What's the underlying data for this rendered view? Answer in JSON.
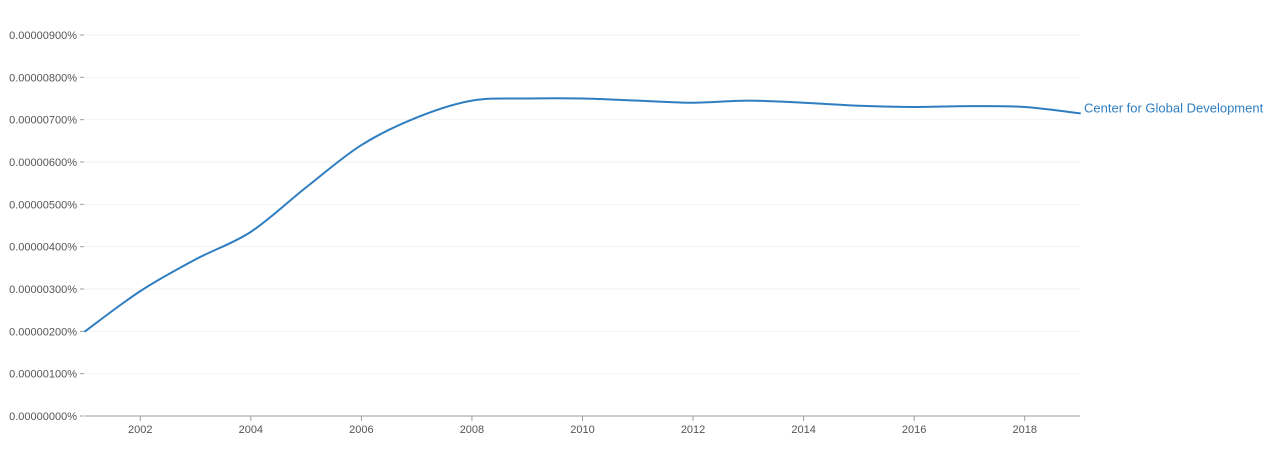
{
  "chart_data": {
    "type": "line",
    "title": "",
    "xlabel": "",
    "ylabel": "",
    "x": [
      2001,
      2002,
      2003,
      2004,
      2005,
      2006,
      2007,
      2008,
      2009,
      2010,
      2011,
      2012,
      2013,
      2014,
      2015,
      2016,
      2017,
      2018,
      2019
    ],
    "series": [
      {
        "name": "Center for Global Development",
        "values": [
          2e-08,
          2.95e-08,
          3.7e-08,
          4.35e-08,
          5.4e-08,
          6.4e-08,
          7.05e-08,
          7.45e-08,
          7.5e-08,
          7.5e-08,
          7.45e-08,
          7.4e-08,
          7.45e-08,
          7.4e-08,
          7.33e-08,
          7.3e-08,
          7.32e-08,
          7.3e-08,
          7.15e-08
        ],
        "color": "#2f7ec1"
      }
    ],
    "xlim": [
      2001,
      2019
    ],
    "ylim": [
      0,
      9e-08
    ],
    "x_ticks": [
      {
        "value": 2002,
        "label": "2002"
      },
      {
        "value": 2004,
        "label": "2004"
      },
      {
        "value": 2006,
        "label": "2006"
      },
      {
        "value": 2008,
        "label": "2008"
      },
      {
        "value": 2010,
        "label": "2010"
      },
      {
        "value": 2012,
        "label": "2012"
      },
      {
        "value": 2014,
        "label": "2014"
      },
      {
        "value": 2016,
        "label": "2016"
      },
      {
        "value": 2018,
        "label": "2018"
      }
    ],
    "y_ticks": [
      {
        "value": 0,
        "label": "0.00000000%"
      },
      {
        "value": 1e-08,
        "label": "0.00000100%"
      },
      {
        "value": 2e-08,
        "label": "0.00000200%"
      },
      {
        "value": 3e-08,
        "label": "0.00000300%"
      },
      {
        "value": 4e-08,
        "label": "0.00000400%"
      },
      {
        "value": 5e-08,
        "label": "0.00000500%"
      },
      {
        "value": 6e-08,
        "label": "0.00000600%"
      },
      {
        "value": 7e-08,
        "label": "0.00000700%"
      },
      {
        "value": 8e-08,
        "label": "0.00000800%"
      },
      {
        "value": 9e-08,
        "label": "0.00000900%"
      }
    ],
    "grid": true,
    "legend": "inline-right-end-of-line",
    "colors": {
      "grid": "#f2f2f2",
      "axis": "#9e9e9e",
      "tick_text": "#555555",
      "label_text": "#2f7ec1"
    }
  }
}
